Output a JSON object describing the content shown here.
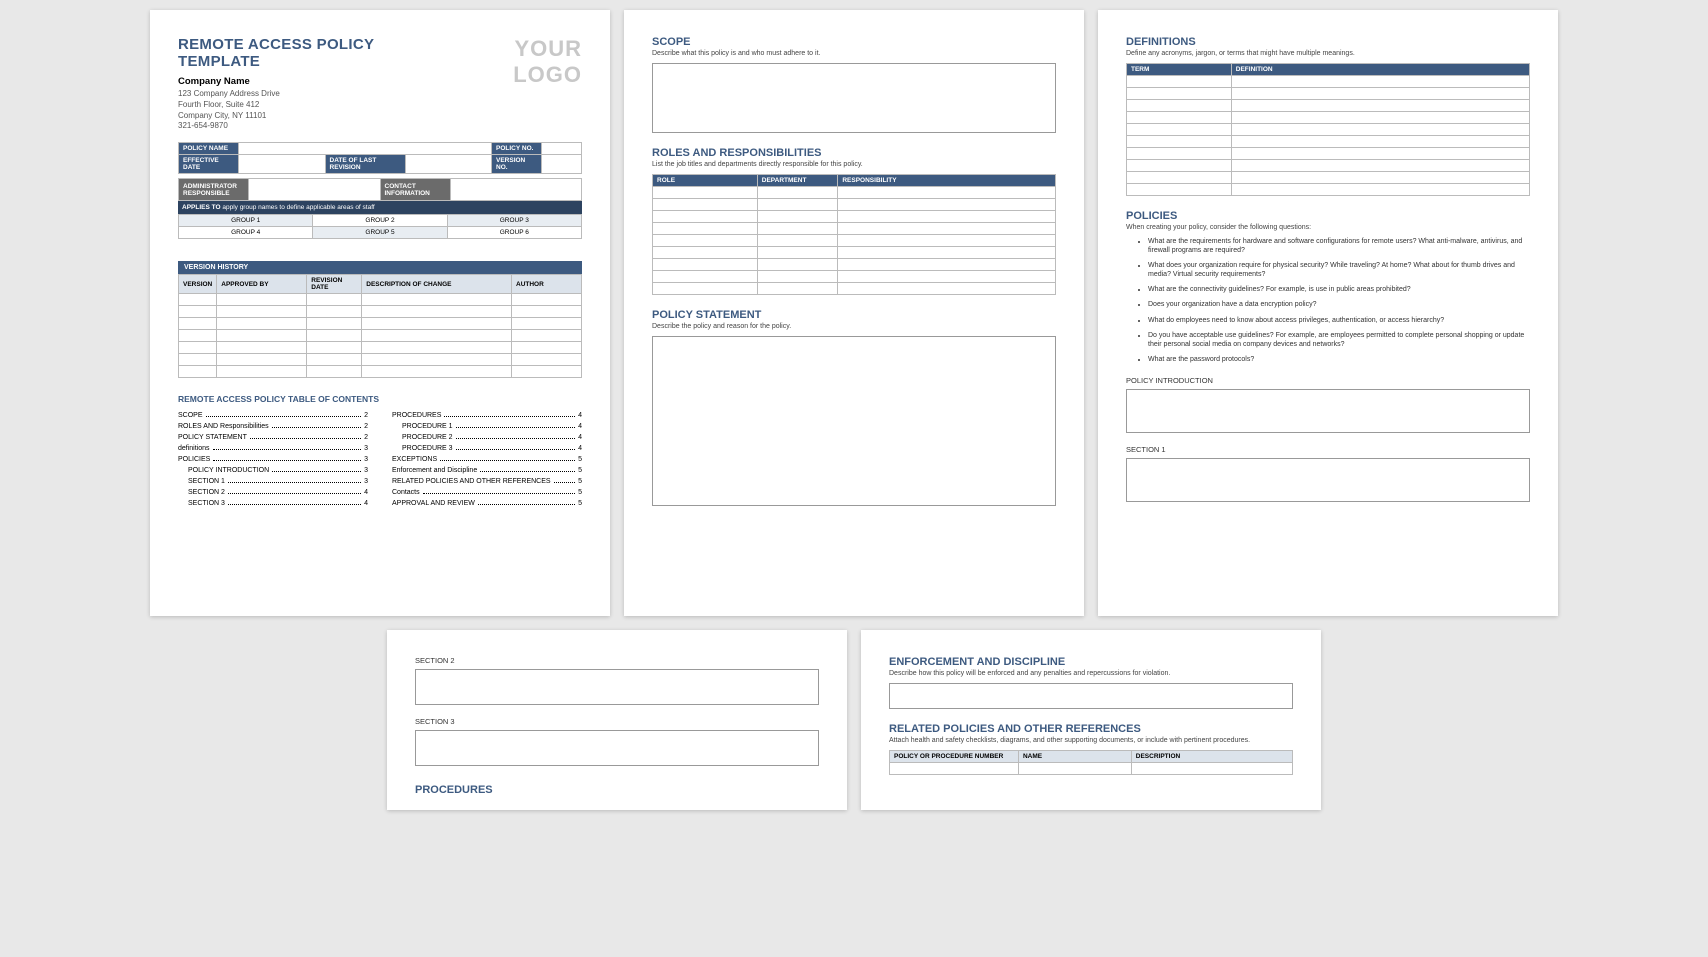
{
  "colors": {
    "accent": "#3d5a80",
    "band": "#3d5a80",
    "grey": "#6b6b6b",
    "hdr_bg": "#dce3eb",
    "page_bg": "#ffffff",
    "canvas_bg": "#e8e8e8",
    "border": "#bbbbbb"
  },
  "page1": {
    "title": "REMOTE ACCESS POLICY TEMPLATE",
    "company": "Company Name",
    "address": [
      "123 Company Address Drive",
      "Fourth Floor, Suite 412",
      "Company City, NY  11101",
      "321-654-9870"
    ],
    "logo_placeholder": "YOUR LOGO",
    "meta_labels": {
      "policy_name": "POLICY NAME",
      "policy_no": "POLICY NO.",
      "effective_date": "EFFECTIVE DATE",
      "date_last_rev": "DATE OF LAST REVISION",
      "version_no": "VERSION NO.",
      "admin_resp": "ADMINISTRATOR RESPONSIBLE",
      "contact_info": "CONTACT INFORMATION"
    },
    "applies_label": "APPLIES TO",
    "applies_text": "apply group names to define applicable areas of staff",
    "groups": [
      "GROUP 1",
      "GROUP 2",
      "GROUP 3",
      "GROUP 4",
      "GROUP 5",
      "GROUP 6"
    ],
    "version_history": "VERSION HISTORY",
    "vh_headers": [
      "VERSION",
      "APPROVED BY",
      "REVISION DATE",
      "DESCRIPTION OF CHANGE",
      "AUTHOR"
    ],
    "vh_empty_rows": 7,
    "toc_title": "REMOTE ACCESS POLICY TABLE OF CONTENTS",
    "toc_left": [
      {
        "t": "SCOPE",
        "p": "2",
        "i": 0
      },
      {
        "t": "ROLES AND Responsibilities",
        "p": "2",
        "i": 0
      },
      {
        "t": "POLICY STATEMENT",
        "p": "2",
        "i": 0
      },
      {
        "t": "definitions",
        "p": "3",
        "i": 0
      },
      {
        "t": "POLICIES",
        "p": "3",
        "i": 0
      },
      {
        "t": "POLICY INTRODUCTION",
        "p": "3",
        "i": 1
      },
      {
        "t": "SECTION 1",
        "p": "3",
        "i": 1
      },
      {
        "t": "SECTION 2",
        "p": "4",
        "i": 1
      },
      {
        "t": "SECTION 3",
        "p": "4",
        "i": 1
      }
    ],
    "toc_right": [
      {
        "t": "PROCEDURES",
        "p": "4",
        "i": 0
      },
      {
        "t": "PROCEDURE 1",
        "p": "4",
        "i": 1
      },
      {
        "t": "PROCEDURE 2",
        "p": "4",
        "i": 1
      },
      {
        "t": "PROCEDURE 3",
        "p": "4",
        "i": 1
      },
      {
        "t": "EXCEPTIONS",
        "p": "5",
        "i": 0
      },
      {
        "t": "Enforcement and Discipline",
        "p": "5",
        "i": 0
      },
      {
        "t": "RELATED POLICIES AND OTHER REFERENCES",
        "p": "5",
        "i": 0
      },
      {
        "t": "Contacts",
        "p": "5",
        "i": 0
      },
      {
        "t": "APPROVAL AND REVIEW",
        "p": "5",
        "i": 0
      }
    ]
  },
  "page2": {
    "scope": {
      "h": "SCOPE",
      "s": "Describe what this policy is and who must adhere to it."
    },
    "roles": {
      "h": "ROLES AND RESPONSIBILITIES",
      "s": "List the job titles and departments directly responsible for this policy.",
      "cols": [
        "ROLE",
        "DEPARTMENT",
        "RESPONSIBILITY"
      ],
      "rows": 9
    },
    "stmt": {
      "h": "POLICY STATEMENT",
      "s": "Describe the policy and reason for the policy."
    }
  },
  "page3": {
    "defs": {
      "h": "DEFINITIONS",
      "s": "Define any acronyms, jargon, or terms that might have multiple meanings.",
      "cols": [
        "TERM",
        "DEFINITION"
      ],
      "rows": 10
    },
    "policies": {
      "h": "POLICIES",
      "s": "When creating your policy, consider the following questions:",
      "items": [
        "What are the requirements for hardware and software configurations for remote users? What anti-malware, antivirus, and firewall programs are required?",
        "What does your organization require for physical security? While traveling? At home? What about for thumb drives and media? Virtual security requirements?",
        "What are the connectivity guidelines? For example, is use in public areas prohibited?",
        "Does your organization have a data encryption policy?",
        "What do employees need to know about access privileges, authentication, or access hierarchy?",
        "Do you have acceptable use guidelines? For example, are employees permitted to complete personal shopping or update their personal social media on company devices and networks?",
        "What are the password protocols?"
      ]
    },
    "intro": "POLICY INTRODUCTION",
    "sec1": "SECTION 1"
  },
  "page4": {
    "sec2": "SECTION 2",
    "sec3": "SECTION 3",
    "procs": "PROCEDURES"
  },
  "page5": {
    "enforce": {
      "h": "ENFORCEMENT AND DISCIPLINE",
      "s": "Describe how this policy will be enforced and any penalties and repercussions for violation."
    },
    "related": {
      "h": "RELATED POLICIES AND OTHER REFERENCES",
      "s": "Attach health and safety checklists, diagrams, and other supporting documents, or include with pertinent procedures.",
      "cols": [
        "POLICY OR PROCEDURE NUMBER",
        "NAME",
        "DESCRIPTION"
      ],
      "rows": 1
    }
  }
}
